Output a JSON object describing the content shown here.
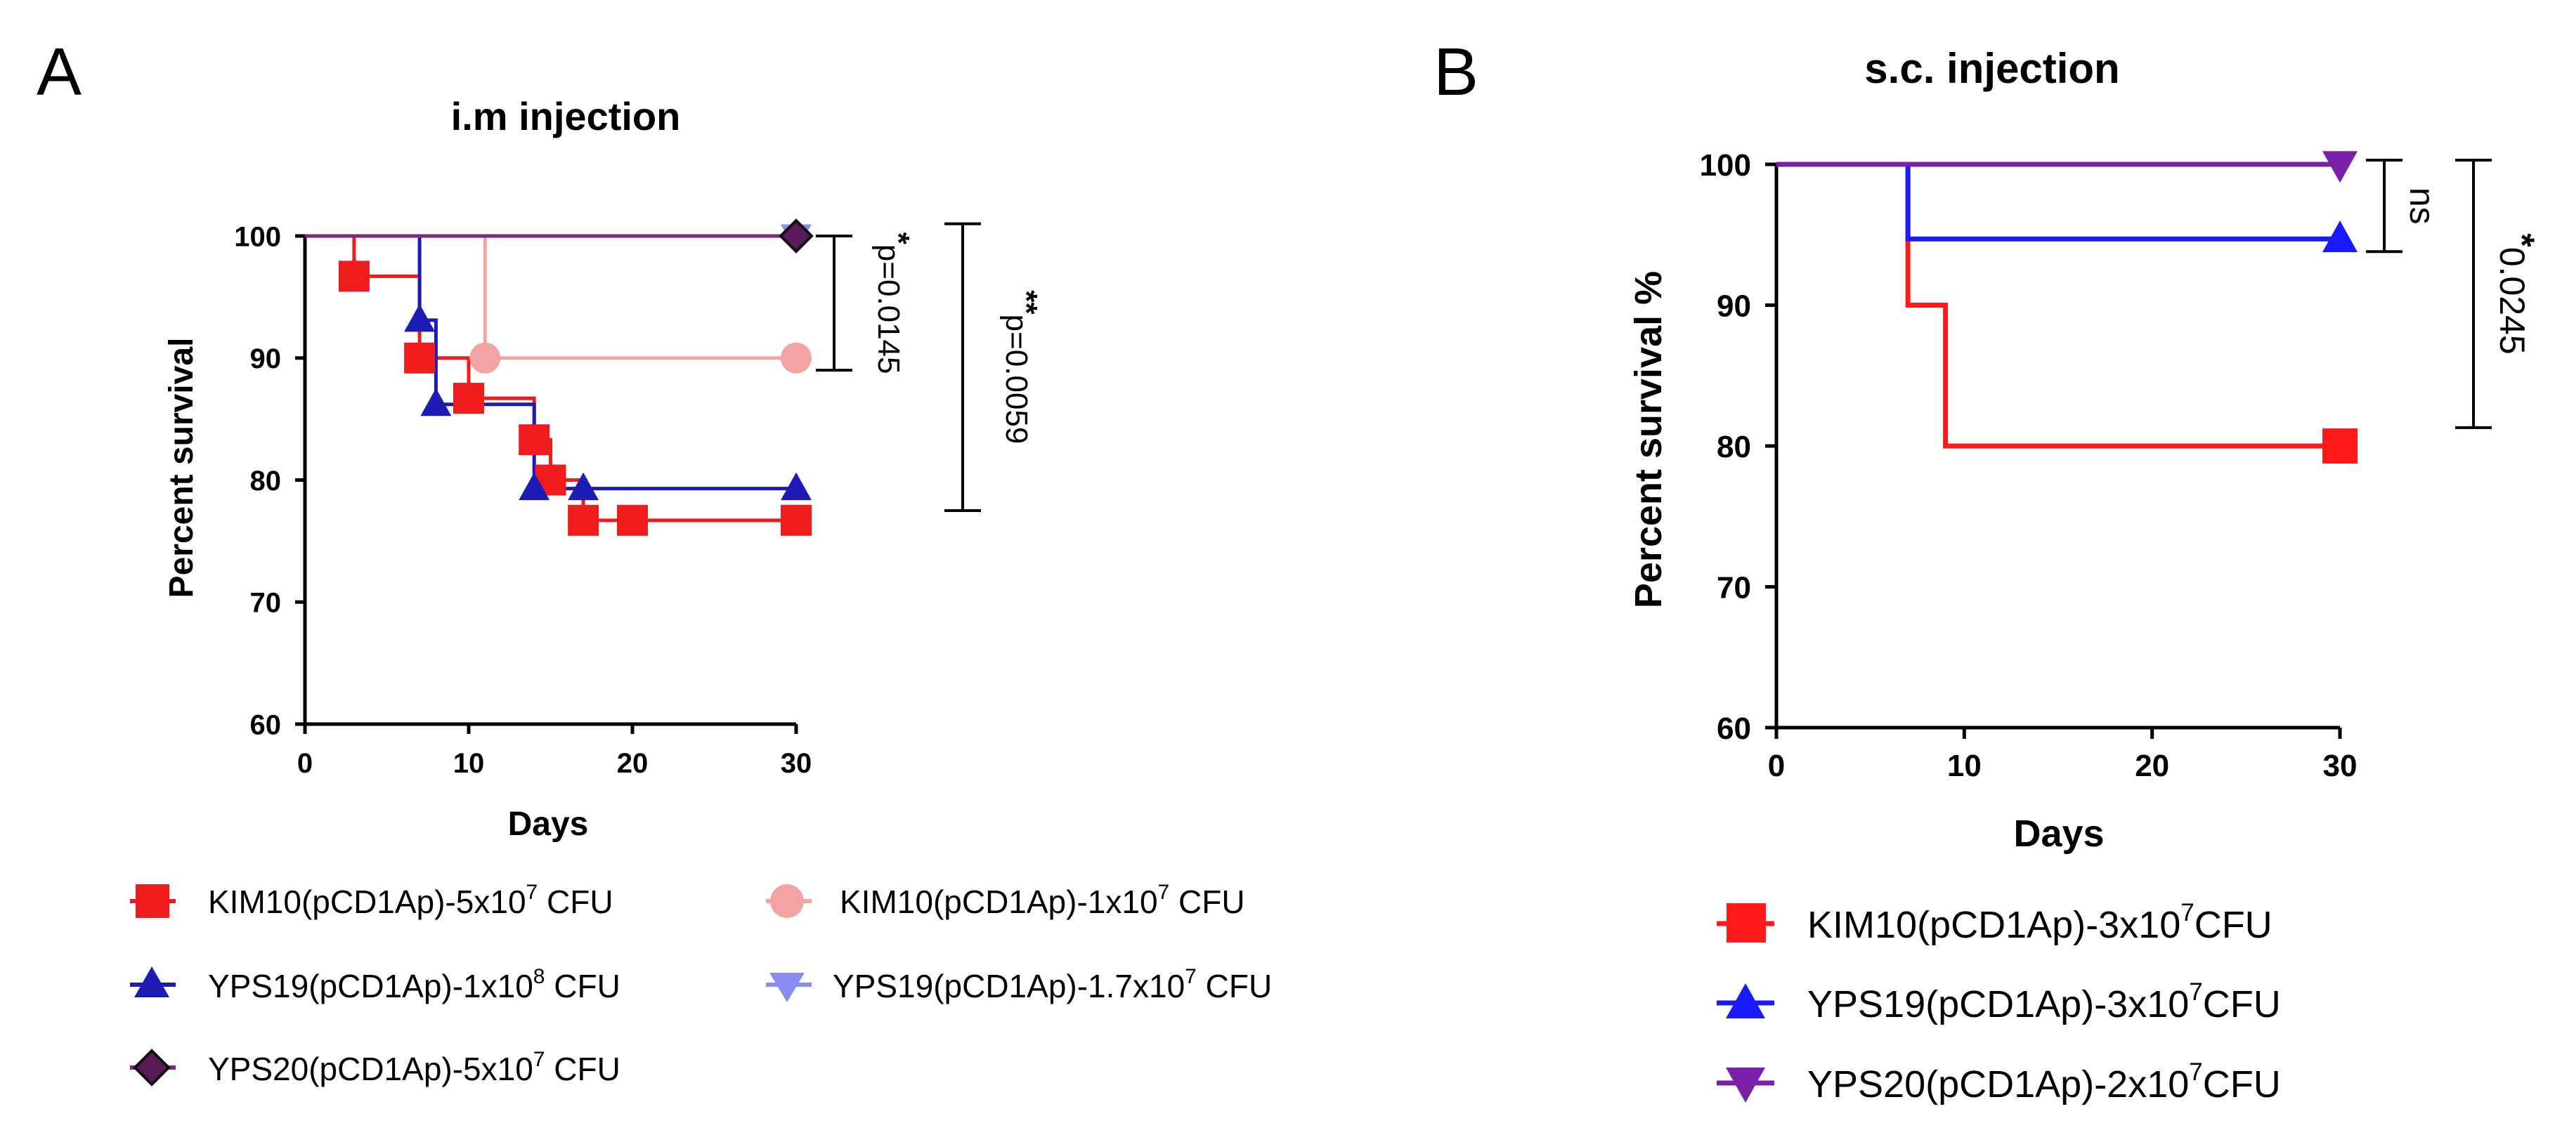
{
  "chart_data": [
    {
      "panel": "A",
      "type": "line",
      "subtype": "kaplan-meier survival",
      "title": "i.m injection",
      "xlabel": "Days",
      "ylabel": "Percent survival",
      "xlim": [
        0,
        30
      ],
      "ylim": [
        60,
        100
      ],
      "xticks": [
        0,
        10,
        20,
        30
      ],
      "yticks": [
        60,
        70,
        80,
        90,
        100
      ],
      "series": [
        {
          "name": "KIM10(pCD1Ap)-5x10",
          "exp": "7",
          "unit": " CFU",
          "color": "#ee1c1c",
          "marker": "square",
          "steps": [
            [
              0,
              100
            ],
            [
              3,
              96.7
            ],
            [
              7,
              90
            ],
            [
              10,
              86.7
            ],
            [
              14,
              83.3
            ],
            [
              15,
              80
            ],
            [
              17,
              76.7
            ],
            [
              30,
              76.7
            ]
          ],
          "markers": [
            [
              3,
              96.7
            ],
            [
              7,
              90
            ],
            [
              10,
              86.7
            ],
            [
              14,
              83.3
            ],
            [
              15,
              80
            ],
            [
              17,
              76.7
            ],
            [
              20,
              76.7
            ],
            [
              30,
              76.7
            ]
          ]
        },
        {
          "name": "KIM10(pCD1Ap)-1x10",
          "exp": "7",
          "unit": " CFU",
          "color": "#f4a3a3",
          "marker": "circle",
          "steps": [
            [
              0,
              100
            ],
            [
              11,
              90
            ],
            [
              30,
              90
            ]
          ],
          "markers": [
            [
              11,
              90
            ],
            [
              30,
              90
            ]
          ]
        },
        {
          "name": "YPS19(pCD1Ap)-1x10",
          "exp": "8",
          "unit": " CFU",
          "color": "#1c1cb4",
          "marker": "triangle-up",
          "steps": [
            [
              0,
              100
            ],
            [
              7,
              93.1
            ],
            [
              8,
              86.2
            ],
            [
              14,
              79.3
            ],
            [
              30,
              79.3
            ]
          ],
          "markers": [
            [
              7,
              93.1
            ],
            [
              8,
              86.2
            ],
            [
              14,
              79.3
            ],
            [
              17,
              79.3
            ],
            [
              30,
              79.3
            ]
          ]
        },
        {
          "name": "YPS19(pCD1Ap)-1.7x10",
          "exp": "7",
          "unit": " CFU",
          "color": "#8a8cf2",
          "marker": "triangle-down",
          "steps": [
            [
              0,
              100
            ],
            [
              30,
              100
            ]
          ],
          "markers": [
            [
              30,
              100
            ]
          ]
        },
        {
          "name": "YPS20(pCD1Ap)-5x10",
          "exp": "7",
          "unit": " CFU",
          "color": "#7a2a7a",
          "marker": "diamond",
          "steps": [
            [
              0,
              100
            ],
            [
              30,
              100
            ]
          ],
          "markers": [
            [
              30,
              100
            ]
          ]
        }
      ],
      "annotations": [
        {
          "star": "*",
          "text": "p=0.0145",
          "y_range": [
            89,
            100
          ]
        },
        {
          "star": "**",
          "text": "p=0.0059",
          "y_range": [
            77.5,
            101
          ]
        }
      ]
    },
    {
      "panel": "B",
      "type": "line",
      "subtype": "kaplan-meier survival",
      "title": "s.c. injection",
      "xlabel": "Days",
      "ylabel": "Percent survival %",
      "xlim": [
        0,
        30
      ],
      "ylim": [
        60,
        100
      ],
      "xticks": [
        0,
        10,
        20,
        30
      ],
      "yticks": [
        60,
        70,
        80,
        90,
        100
      ],
      "series": [
        {
          "name": "KIM10(pCD1Ap)-3x10",
          "exp": "7",
          "unit": "CFU",
          "color": "#ff1a1a",
          "marker": "square",
          "steps": [
            [
              0,
              100
            ],
            [
              7,
              90
            ],
            [
              9,
              80
            ],
            [
              30,
              80
            ]
          ],
          "markers": [
            [
              30,
              80
            ]
          ]
        },
        {
          "name": "YPS19(pCD1Ap)-3x10",
          "exp": "7",
          "unit": "CFU",
          "color": "#1a1aff",
          "marker": "triangle-up",
          "steps": [
            [
              0,
              100
            ],
            [
              7,
              94.7
            ],
            [
              30,
              94.7
            ]
          ],
          "markers": [
            [
              30,
              94.7
            ]
          ]
        },
        {
          "name": "YPS20(pCD1Ap)-2x10",
          "exp": "7",
          "unit": "CFU",
          "color": "#7a1fa8",
          "marker": "triangle-down",
          "steps": [
            [
              0,
              100
            ],
            [
              30,
              100
            ]
          ],
          "markers": [
            [
              30,
              100
            ]
          ]
        }
      ],
      "annotations": [
        {
          "star": "",
          "text": "ns",
          "y_range": [
            93.8,
            100.3
          ]
        },
        {
          "star": "*",
          "text": "0.0245",
          "y_range": [
            81.3,
            100.3
          ]
        }
      ]
    }
  ]
}
